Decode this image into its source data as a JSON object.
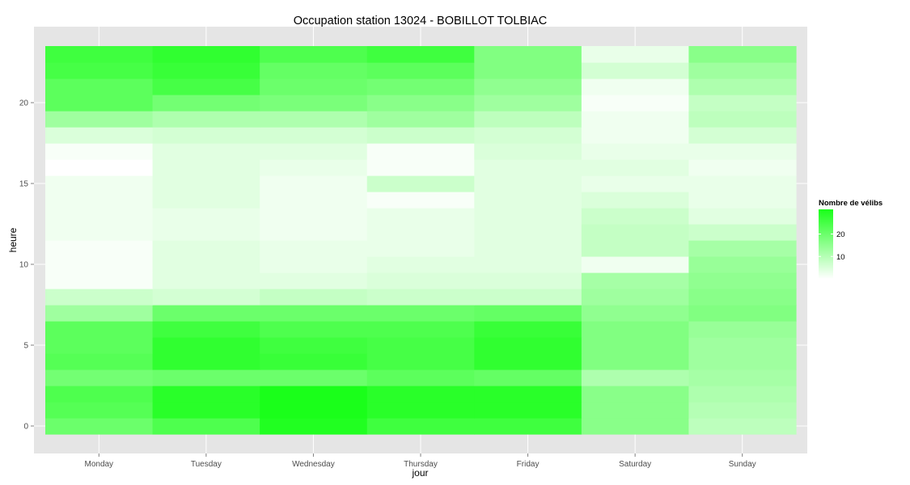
{
  "chart_data": {
    "type": "heatmap",
    "title": "Occupation station 13024 - BOBILLOT TOLBIAC",
    "xlabel": "jour",
    "ylabel": "heure",
    "categories": [
      "Monday",
      "Tuesday",
      "Wednesday",
      "Thursday",
      "Friday",
      "Saturday",
      "Sunday"
    ],
    "y": [
      0,
      1,
      2,
      3,
      4,
      5,
      6,
      7,
      8,
      9,
      10,
      11,
      12,
      13,
      14,
      15,
      16,
      17,
      18,
      19,
      20,
      21,
      22,
      23
    ],
    "ylim": [
      -0.5,
      23.5
    ],
    "y_ticks": [
      0,
      5,
      10,
      15,
      20
    ],
    "values": [
      [
        20,
        24,
        30,
        26,
        26,
        16,
        9
      ],
      [
        23,
        29,
        31,
        29,
        29,
        16,
        10
      ],
      [
        24,
        29,
        31,
        29,
        29,
        16,
        11
      ],
      [
        19,
        20,
        20,
        22,
        21,
        11,
        12
      ],
      [
        23,
        28,
        27,
        25,
        28,
        17,
        13
      ],
      [
        22,
        28,
        26,
        25,
        28,
        17,
        13
      ],
      [
        22,
        26,
        24,
        24,
        27,
        17,
        14
      ],
      [
        13,
        20,
        20,
        20,
        21,
        15,
        17
      ],
      [
        7,
        6,
        8,
        7,
        7,
        13,
        16
      ],
      [
        1,
        4,
        4,
        5,
        5,
        12,
        15
      ],
      [
        1,
        4,
        3,
        4,
        4,
        2,
        14
      ],
      [
        1,
        4,
        3,
        3,
        4,
        8,
        12
      ],
      [
        2,
        3,
        2,
        3,
        4,
        8,
        7
      ],
      [
        2,
        3,
        2,
        3,
        4,
        7,
        4
      ],
      [
        2,
        4,
        2,
        1,
        4,
        5,
        3
      ],
      [
        2,
        4,
        2,
        7,
        4,
        3,
        3
      ],
      [
        0,
        4,
        3,
        1,
        4,
        4,
        2
      ],
      [
        1,
        4,
        4,
        1,
        5,
        3,
        3
      ],
      [
        5,
        6,
        6,
        7,
        6,
        2,
        6
      ],
      [
        13,
        11,
        11,
        13,
        9,
        2,
        9
      ],
      [
        22,
        19,
        18,
        16,
        13,
        1,
        8
      ],
      [
        22,
        25,
        20,
        19,
        15,
        2,
        11
      ],
      [
        25,
        27,
        21,
        22,
        17,
        6,
        13
      ],
      [
        26,
        28,
        24,
        26,
        17,
        3,
        16
      ]
    ],
    "legend": {
      "title": "Nombre de vélibs",
      "labels": [
        "10",
        "20"
      ],
      "ticks": [
        10,
        20
      ],
      "range": [
        0,
        31
      ],
      "placement": "right"
    },
    "colors": {
      "low": "#ffffff",
      "high": "#1aff1a",
      "panel": "#e5e5e5",
      "grid": "#ffffff"
    },
    "grid": true
  }
}
